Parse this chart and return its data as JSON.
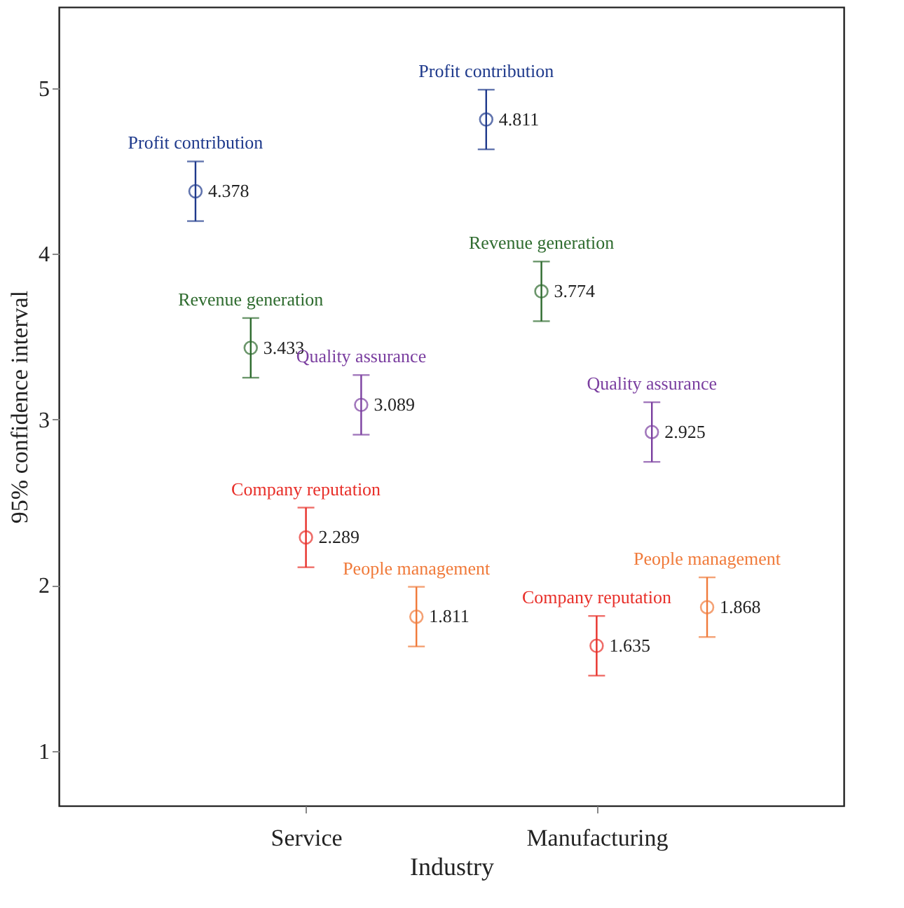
{
  "chart_data": {
    "type": "scatter",
    "xlabel": "Industry",
    "ylabel": "95% confidence interval",
    "categories": [
      "Service",
      "Manufacturing"
    ],
    "ylim": [
      0.67,
      5.49
    ],
    "yticks": [
      1,
      2,
      3,
      4,
      5
    ],
    "grid": false,
    "legend": false,
    "marker": "circle",
    "data_labels": true,
    "series": [
      {
        "name": "Profit contribution",
        "color": "#1f3a8c",
        "values": [
          4.378,
          4.811
        ],
        "errors": [
          0.18,
          0.18
        ]
      },
      {
        "name": "Revenue generation",
        "color": "#2e6b2e",
        "values": [
          3.433,
          3.774
        ],
        "errors": [
          0.18,
          0.18
        ]
      },
      {
        "name": "Company reputation",
        "color": "#e8302a",
        "values": [
          2.289,
          1.635
        ],
        "errors": [
          0.18,
          0.18
        ]
      },
      {
        "name": "Quality assurance",
        "color": "#7b3fa0",
        "values": [
          3.089,
          2.925
        ],
        "errors": [
          0.18,
          0.18
        ]
      },
      {
        "name": "People management",
        "color": "#f07a3a",
        "values": [
          1.811,
          1.868
        ],
        "errors": [
          0.18,
          0.18
        ]
      }
    ]
  }
}
